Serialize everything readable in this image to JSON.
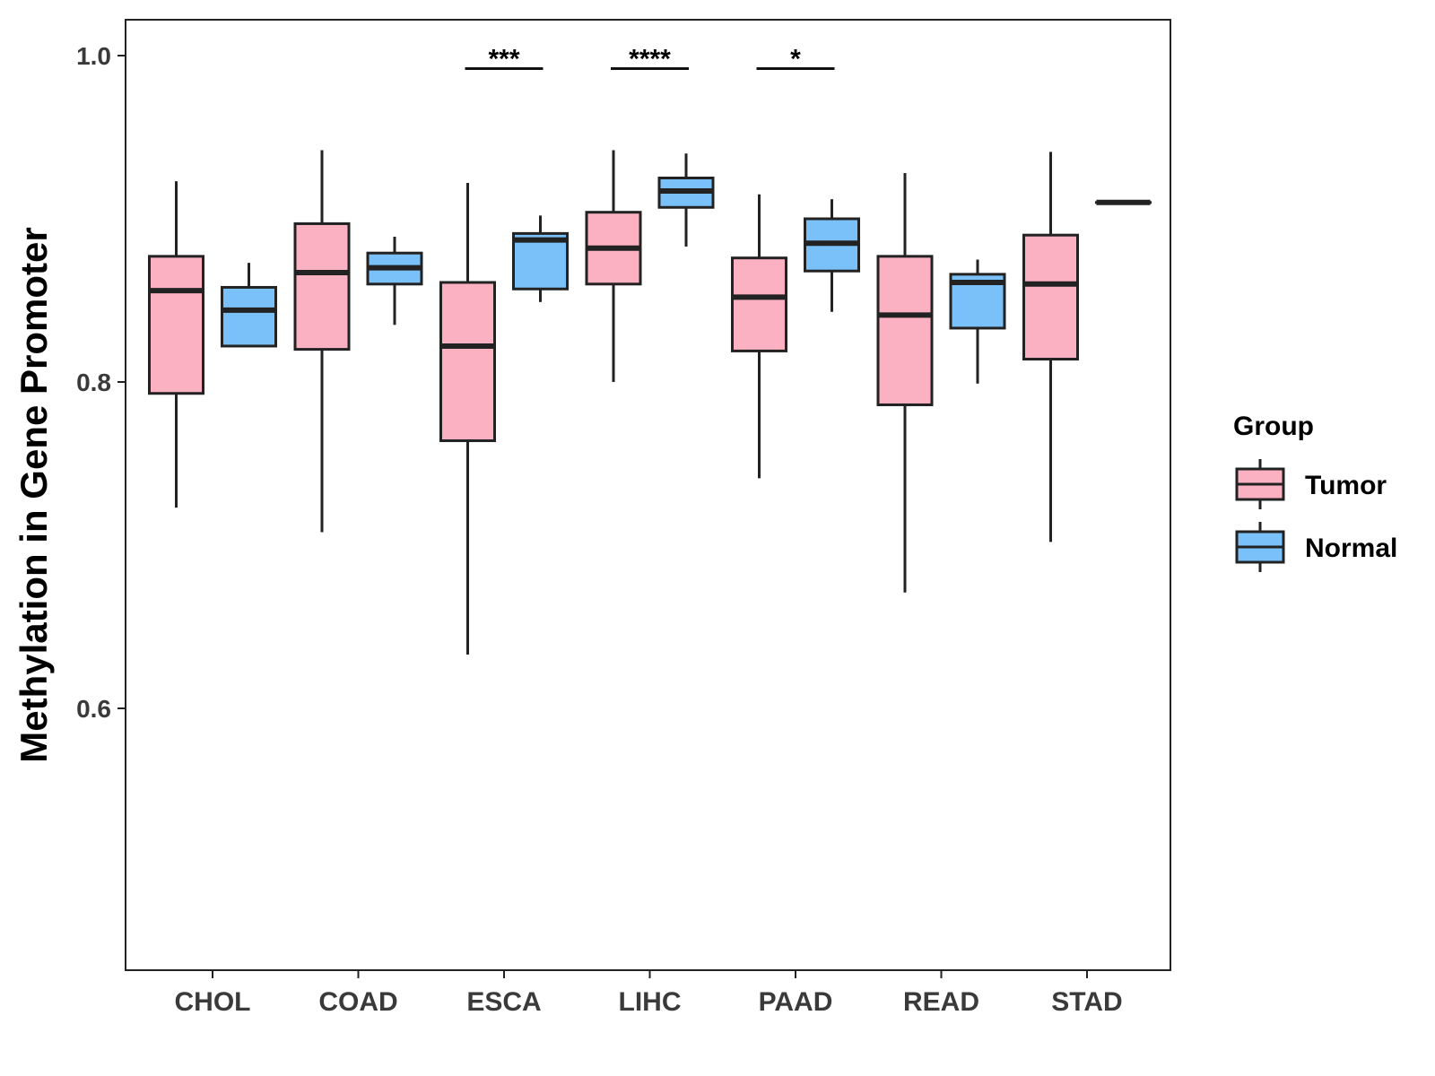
{
  "chart_data": {
    "type": "boxplot",
    "title": "",
    "xlabel": "",
    "ylabel": "Methylation in Gene Promoter",
    "ylim": [
      0.42,
      1.02
    ],
    "yticks": [
      0.6,
      0.8,
      1.0
    ],
    "ytick_labels": [
      "0.6",
      "0.8",
      "1.0"
    ],
    "grid": false,
    "categories": [
      "CHOL",
      "COAD",
      "ESCA",
      "LIHC",
      "PAAD",
      "READ",
      "STAD"
    ],
    "legend": {
      "title": "Group",
      "position": "right",
      "entries": [
        {
          "name": "Tumor",
          "color": "#FBB1C1"
        },
        {
          "name": "Normal",
          "color": "#79C1F8"
        }
      ]
    },
    "series": [
      {
        "name": "Tumor",
        "color": "#FBB1C1",
        "boxes": [
          {
            "whisker_low": 0.723,
            "q1": 0.793,
            "median": 0.856,
            "q3": 0.877,
            "whisker_high": 0.923
          },
          {
            "whisker_low": 0.708,
            "q1": 0.82,
            "median": 0.867,
            "q3": 0.897,
            "whisker_high": 0.942
          },
          {
            "whisker_low": 0.633,
            "q1": 0.764,
            "median": 0.822,
            "q3": 0.861,
            "whisker_high": 0.922
          },
          {
            "whisker_low": 0.8,
            "q1": 0.86,
            "median": 0.882,
            "q3": 0.904,
            "whisker_high": 0.942
          },
          {
            "whisker_low": 0.741,
            "q1": 0.819,
            "median": 0.852,
            "q3": 0.876,
            "whisker_high": 0.915
          },
          {
            "whisker_low": 0.671,
            "q1": 0.786,
            "median": 0.841,
            "q3": 0.877,
            "whisker_high": 0.928
          },
          {
            "whisker_low": 0.702,
            "q1": 0.814,
            "median": 0.86,
            "q3": 0.89,
            "whisker_high": 0.941
          }
        ]
      },
      {
        "name": "Normal",
        "color": "#79C1F8",
        "boxes": [
          {
            "whisker_low": 0.822,
            "q1": 0.822,
            "median": 0.844,
            "q3": 0.858,
            "whisker_high": 0.873
          },
          {
            "whisker_low": 0.835,
            "q1": 0.86,
            "median": 0.87,
            "q3": 0.879,
            "whisker_high": 0.889
          },
          {
            "whisker_low": 0.849,
            "q1": 0.857,
            "median": 0.887,
            "q3": 0.891,
            "whisker_high": 0.902
          },
          {
            "whisker_low": 0.883,
            "q1": 0.907,
            "median": 0.917,
            "q3": 0.925,
            "whisker_high": 0.94
          },
          {
            "whisker_low": 0.843,
            "q1": 0.868,
            "median": 0.885,
            "q3": 0.9,
            "whisker_high": 0.912
          },
          {
            "whisker_low": 0.799,
            "q1": 0.833,
            "median": 0.861,
            "q3": 0.866,
            "whisker_high": 0.875
          },
          {
            "whisker_low": 0.91,
            "q1": 0.91,
            "median": 0.91,
            "q3": 0.91,
            "whisker_high": 0.91
          }
        ]
      }
    ],
    "significance": [
      {
        "category": "ESCA",
        "label": "***",
        "y": 0.992
      },
      {
        "category": "LIHC",
        "label": "****",
        "y": 0.992
      },
      {
        "category": "PAAD",
        "label": "*",
        "y": 0.992
      }
    ]
  }
}
